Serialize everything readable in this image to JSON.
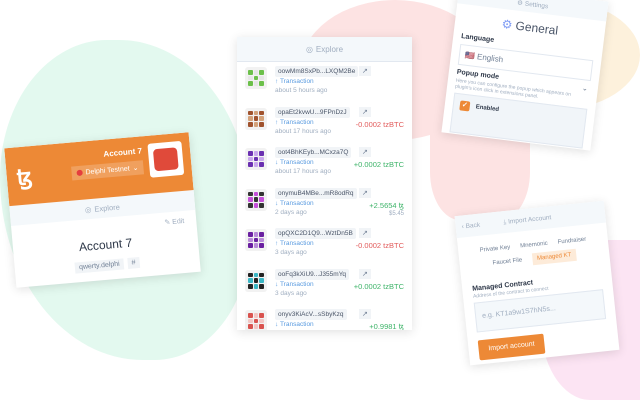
{
  "explore_panel": {
    "title": "Explore",
    "operations": [
      {
        "hash": "oowMm8SxPb...LXQM2Be",
        "type": "Transaction",
        "direction": "out",
        "time": "about 5 hours ago",
        "amount": "",
        "usd": "",
        "colors": [
          "#6cc04a",
          "#e6e6e6"
        ]
      },
      {
        "hash": "opaEt2kvwU...9FPnDzJ",
        "type": "Transaction",
        "direction": "out",
        "time": "about 17 hours ago",
        "amount": "-0.0002 tzBTC",
        "usd": "",
        "colors": [
          "#a0522d",
          "#d4a27a"
        ]
      },
      {
        "hash": "oot4BhKEyb...MCxza7Q",
        "type": "Transaction",
        "direction": "in",
        "time": "about 17 hours ago",
        "amount": "+0.0002 tzBTC",
        "usd": "",
        "colors": [
          "#6a2fb0",
          "#c9a7ee"
        ]
      },
      {
        "hash": "onymuB4MBe...mR8odRq",
        "type": "Transaction",
        "direction": "in",
        "time": "2 days ago",
        "amount": "+2.5654 ꜩ",
        "usd": "$5.45",
        "colors": [
          "#333333",
          "#c54fd9"
        ]
      },
      {
        "hash": "opQXC2D1Q9...WztDn5B",
        "type": "Transaction",
        "direction": "out",
        "time": "3 days ago",
        "amount": "-0.0002 tzBTC",
        "usd": "",
        "colors": [
          "#6a1fa0",
          "#b88ad9"
        ]
      },
      {
        "hash": "ooFq3kXiU9...J355mYq",
        "type": "Transaction",
        "direction": "in",
        "time": "3 days ago",
        "amount": "+0.0002 tzBTC",
        "usd": "",
        "colors": [
          "#222222",
          "#3ab6c4"
        ]
      },
      {
        "hash": "onyv3KiAcV...sSbyKzq",
        "type": "Transaction",
        "direction": "in",
        "time": "",
        "amount": "+0.9981 ꜩ",
        "usd": "",
        "colors": [
          "#d9534f",
          "#f3c6c4"
        ]
      }
    ]
  },
  "account_card": {
    "account_name": "Account 7",
    "network": "Delphi Testnet",
    "nav": "Explore",
    "edit": "Edit",
    "title": "Account 7",
    "domain": "qwerty.delphi",
    "hash_symbol": "#",
    "brand_color": "#ed8936"
  },
  "settings_card": {
    "header": "Settings",
    "title": "General",
    "language_label": "Language",
    "language_value": "English",
    "popup_label": "Popup mode",
    "popup_desc": "Here you can configure the popup which appears on plugin's icon click in extensions panel.",
    "popup_value": "Enabled"
  },
  "import_card": {
    "back": "Back",
    "header": "Import Account",
    "tabs": [
      "Private Key",
      "Mnemonic",
      "Fundraiser",
      "Faucet File",
      "Managed KT"
    ],
    "active_tab": "Managed KT",
    "field_label": "Managed Contract",
    "field_desc": "Address of the contract to connect",
    "placeholder": "e.g. KT1a9w1S7hN5s...",
    "submit": "Import account"
  }
}
